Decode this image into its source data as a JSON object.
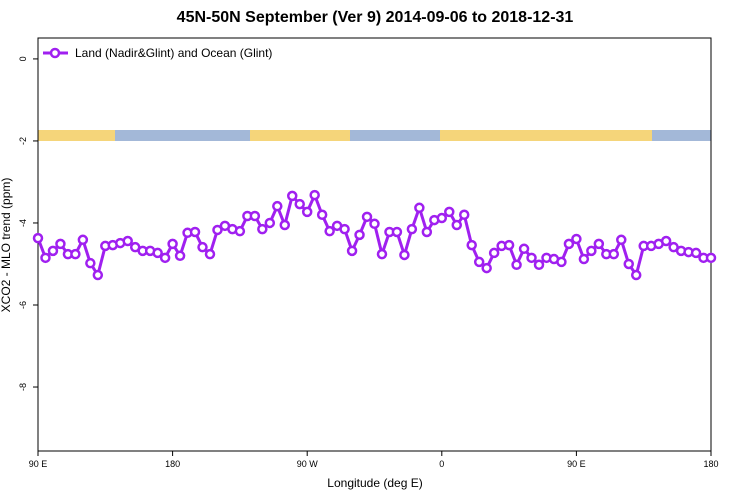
{
  "chart_data": {
    "type": "line",
    "title": "45N-50N September (Ver 9)   2014-09-06 to 2018-12-31",
    "x_label": "Longitude (deg E)",
    "y_label": "XCO2 - MLO trend (ppm)",
    "x": [
      90,
      95,
      100,
      105,
      110,
      115,
      120,
      125,
      130,
      135,
      140,
      145,
      150,
      155,
      160,
      165,
      170,
      175,
      180,
      185,
      190,
      195,
      200,
      205,
      210,
      215,
      220,
      225,
      230,
      235,
      240,
      245,
      250,
      255,
      260,
      265,
      270,
      275,
      280,
      285,
      290,
      295,
      300,
      305,
      310,
      315,
      320,
      325,
      330,
      335,
      340,
      345,
      350,
      355,
      360,
      365,
      370,
      375,
      380,
      385,
      390,
      395,
      400,
      405,
      410,
      415,
      420,
      425,
      430,
      435,
      440,
      445,
      450,
      455,
      460,
      465,
      470,
      475,
      480,
      485,
      490,
      495,
      500,
      505,
      510,
      515,
      520,
      525,
      530,
      535,
      540
    ],
    "series": [
      {
        "name": "Land (Nadir&Glint) and Ocean (Glint)",
        "color": "#a020f0",
        "values": [
          -4.37,
          -4.85,
          -4.68,
          -4.51,
          -4.76,
          -4.76,
          -4.41,
          -4.98,
          -5.27,
          -4.56,
          -4.54,
          -4.49,
          -4.44,
          -4.59,
          -4.68,
          -4.68,
          -4.73,
          -4.85,
          -4.51,
          -4.8,
          -4.24,
          -4.22,
          -4.59,
          -4.76,
          -4.17,
          -4.07,
          -4.15,
          -4.2,
          -3.83,
          -3.83,
          -4.15,
          -4.0,
          -3.59,
          -4.05,
          -3.34,
          -3.54,
          -3.73,
          -3.32,
          -3.8,
          -4.2,
          -4.07,
          -4.15,
          -4.68,
          -4.29,
          -3.85,
          -4.02,
          -4.76,
          -4.22,
          -4.22,
          -4.78,
          -4.15,
          -3.63,
          -4.22,
          -3.93,
          -3.88,
          -3.73,
          -4.05,
          -3.8,
          -4.54,
          -4.95,
          -5.1,
          -4.73,
          -4.56,
          -4.54,
          -5.02,
          -4.63,
          -4.85,
          -5.02,
          -4.85,
          -4.88,
          -4.95,
          -4.51,
          -4.39,
          -4.88,
          -4.68,
          -4.51,
          -4.76,
          -4.76,
          -4.41,
          -5.0,
          -5.27,
          -4.56,
          -4.56,
          -4.51,
          -4.44,
          -4.59,
          -4.68,
          -4.71,
          -4.73,
          -4.85,
          -4.85
        ]
      }
    ],
    "xlim": [
      90,
      540
    ],
    "xticks": [
      {
        "value": 90,
        "label": "90 E"
      },
      180,
      {
        "value": 270,
        "label": "90 W"
      },
      {
        "value": 360,
        "label": "0"
      },
      {
        "value": 450,
        "label": "90 E"
      },
      {
        "value": 540,
        "label": "180"
      }
    ],
    "ylim": [
      -9.56,
      0.51
    ],
    "yticks": [
      0,
      -2,
      -4,
      -6,
      -8
    ],
    "grid": false,
    "legend": "top-left"
  }
}
